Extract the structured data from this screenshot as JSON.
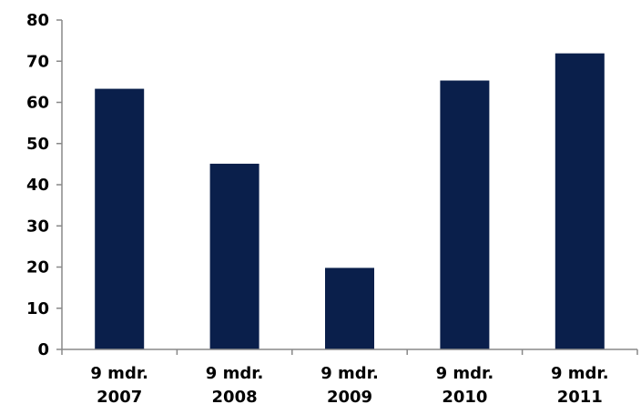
{
  "chart_data": {
    "type": "bar",
    "categories": [
      [
        "9 mdr.",
        "2007"
      ],
      [
        "9 mdr.",
        "2008"
      ],
      [
        "9 mdr.",
        "2009"
      ],
      [
        "9 mdr.",
        "2010"
      ],
      [
        "9 mdr.",
        "2011"
      ]
    ],
    "values": [
      63.3,
      45.1,
      19.8,
      65.3,
      71.9
    ],
    "ylim": [
      0,
      80
    ],
    "yticks": [
      0,
      10,
      20,
      30,
      40,
      50,
      60,
      70,
      80
    ],
    "title": "",
    "xlabel": "",
    "ylabel": "",
    "grid": false,
    "colors": {
      "bar": "#0a1f4b",
      "axis": "#888888",
      "text": "#000000"
    }
  }
}
